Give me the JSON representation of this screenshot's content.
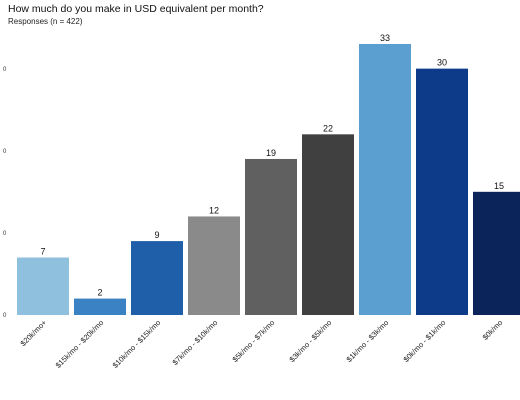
{
  "chart_data": {
    "type": "bar",
    "title": "How much do you make in USD equivalent per month?",
    "subtitle": "Responses (n = 422)",
    "xlabel": "",
    "ylabel": "",
    "categories": [
      "$20k/mo+",
      "$15k/mo - $20k/mo",
      "$10k/mo - $15k/mo",
      "$7k/mo - $10k/mo",
      "$5k/mo - $7k/mo",
      "$3k/mo - $5k/mo",
      "$1k/mo - $3k/mo",
      "$0k/mo - $1k/mo",
      "$0k/mo"
    ],
    "values": [
      7,
      2,
      9,
      12,
      19,
      22,
      33,
      30,
      15
    ],
    "colors": [
      "#8fc1df",
      "#3a82c4",
      "#1f5fa9",
      "#8a8a8a",
      "#606060",
      "#404040",
      "#5a9fcf",
      "#0d3b8a",
      "#0b2459"
    ],
    "yticks": [
      "0",
      "0",
      "0",
      "0"
    ],
    "ylim": [
      0,
      33
    ],
    "grid": false,
    "legend": "none"
  }
}
